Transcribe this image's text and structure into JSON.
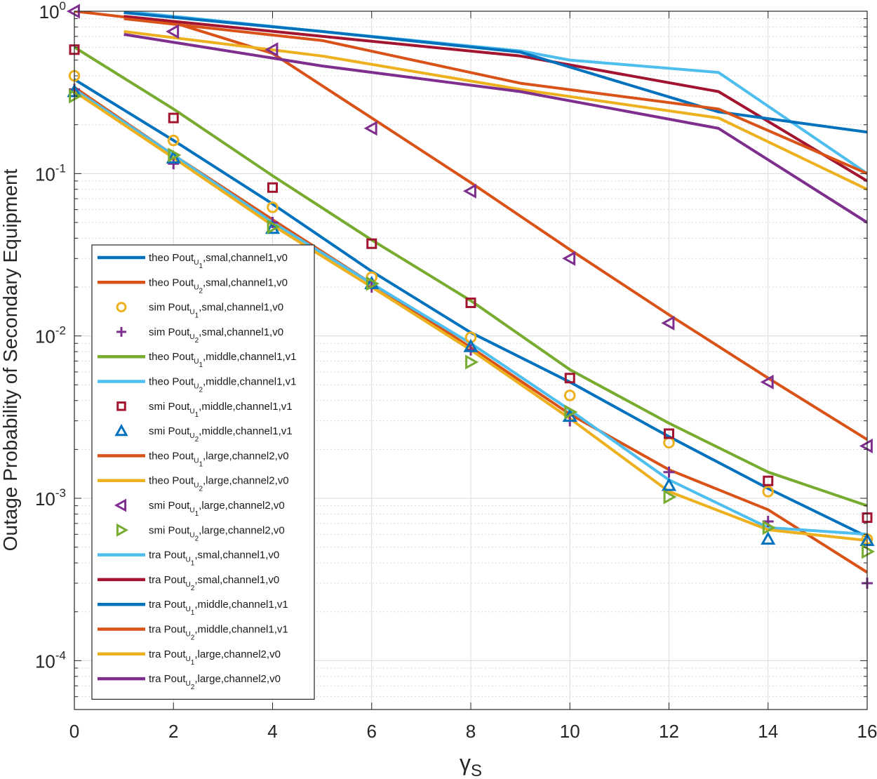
{
  "chart_data": {
    "type": "line",
    "title": "",
    "xlabel": "γ",
    "xlabel_sub": "S",
    "ylabel": "Outage Probability of Secondary Equipment",
    "yscale": "log",
    "xlim": [
      0,
      16
    ],
    "ylim": [
      5e-05,
      1
    ],
    "grid": true,
    "xticks": [
      0,
      2,
      4,
      6,
      8,
      10,
      12,
      14,
      16
    ],
    "yticks": [
      {
        "value": 1,
        "base": "10",
        "exp": "0"
      },
      {
        "value": 0.1,
        "base": "10",
        "exp": "-1"
      },
      {
        "value": 0.01,
        "base": "10",
        "exp": "-2"
      },
      {
        "value": 0.001,
        "base": "10",
        "exp": "-3"
      },
      {
        "value": 0.0001,
        "base": "10",
        "exp": "-4"
      }
    ],
    "legend_position": "lower-left",
    "series": [
      {
        "pre": "theo Pout",
        "sub1": "U",
        "sub2": "1",
        "post": ",smal,channel1,v0",
        "color": "#0072BD",
        "style": "line",
        "x": [
          0,
          2,
          4,
          6,
          8,
          10,
          12,
          14,
          16
        ],
        "y": [
          0.38,
          0.16,
          0.065,
          0.025,
          0.0105,
          0.0052,
          0.0024,
          0.00115,
          0.00058
        ]
      },
      {
        "pre": "theo Pout",
        "sub1": "U",
        "sub2": "2",
        "post": ",smal,channel1,v0",
        "color": "#D95319",
        "style": "line",
        "x": [
          0,
          2,
          4,
          6,
          8,
          10,
          12,
          14,
          16
        ],
        "y": [
          0.34,
          0.13,
          0.052,
          0.021,
          0.0085,
          0.0033,
          0.0015,
          0.00085,
          0.00035
        ]
      },
      {
        "pre": "sim Pout",
        "sub1": "U",
        "sub2": "1",
        "post": ",smal,channel1,v0",
        "color": "#EDB120",
        "style": "marker",
        "marker": "circle",
        "x": [
          0,
          2,
          4,
          6,
          8,
          10,
          12,
          14,
          16
        ],
        "y": [
          0.4,
          0.16,
          0.062,
          0.023,
          0.0098,
          0.0043,
          0.0022,
          0.0011,
          0.00056
        ]
      },
      {
        "pre": "sim Pout",
        "sub1": "U",
        "sub2": "2",
        "post": ",smal,channel1,v0",
        "color": "#7E2F8E",
        "style": "marker",
        "marker": "plus",
        "x": [
          0,
          2,
          4,
          6,
          8,
          10,
          12,
          14,
          16
        ],
        "y": [
          0.33,
          0.115,
          0.05,
          0.02,
          0.0082,
          0.003,
          0.00145,
          0.00072,
          0.0003
        ]
      },
      {
        "pre": "theo Pout",
        "sub1": "U",
        "sub2": "1",
        "post": ",middle,channel1,v1",
        "color": "#77AC30",
        "style": "line",
        "x": [
          0,
          2,
          4,
          6,
          8,
          10,
          12,
          14,
          16
        ],
        "y": [
          0.6,
          0.25,
          0.097,
          0.039,
          0.0165,
          0.0062,
          0.0029,
          0.00145,
          0.0009
        ]
      },
      {
        "pre": "theo Pout",
        "sub1": "U",
        "sub2": "2",
        "post": ",middle,channel1,v1",
        "color": "#4DBEEE",
        "style": "line",
        "x": [
          0,
          2,
          4,
          6,
          8,
          10,
          12,
          14,
          16
        ],
        "y": [
          0.33,
          0.13,
          0.05,
          0.021,
          0.009,
          0.0035,
          0.0013,
          0.00066,
          0.0006
        ]
      },
      {
        "pre": "smi Pout",
        "sub1": "U",
        "sub2": "1",
        "post": ",middle,channel1,v1",
        "color": "#A2142F",
        "style": "marker",
        "marker": "square",
        "x": [
          0,
          2,
          4,
          6,
          8,
          10,
          12,
          14,
          16
        ],
        "y": [
          0.58,
          0.22,
          0.082,
          0.037,
          0.016,
          0.0055,
          0.0025,
          0.00128,
          0.00076
        ]
      },
      {
        "pre": "smi Pout",
        "sub1": "U",
        "sub2": "2",
        "post": ",middle,channel1,v1",
        "color": "#0072BD",
        "style": "marker",
        "marker": "triangle-up",
        "x": [
          0,
          2,
          4,
          6,
          8,
          10,
          12,
          14,
          16
        ],
        "y": [
          0.32,
          0.125,
          0.046,
          0.021,
          0.0086,
          0.0032,
          0.0012,
          0.00056,
          0.00055
        ]
      },
      {
        "pre": "theo Pout",
        "sub1": "U",
        "sub2": "1",
        "post": ",large,channel2,v0",
        "color": "#D95319",
        "style": "line",
        "x": [
          0,
          2,
          4,
          6,
          8,
          10,
          12,
          14,
          16
        ],
        "y": [
          1.0,
          0.85,
          0.55,
          0.22,
          0.088,
          0.034,
          0.0135,
          0.0055,
          0.0023
        ]
      },
      {
        "pre": "theo Pout",
        "sub1": "U",
        "sub2": "2",
        "post": ",large,channel2,v0",
        "color": "#EDB120",
        "style": "line",
        "x": [
          0,
          2,
          4,
          6,
          8,
          10,
          12,
          14,
          16
        ],
        "y": [
          0.32,
          0.125,
          0.048,
          0.02,
          0.0082,
          0.0031,
          0.0011,
          0.00064,
          0.00055
        ]
      },
      {
        "pre": "smi Pout",
        "sub1": "U",
        "sub2": "1",
        "post": ",large,channel2,v0",
        "color": "#7E2F8E",
        "style": "marker",
        "marker": "triangle-left",
        "x": [
          0,
          2,
          4,
          6,
          8,
          10,
          12,
          14,
          16
        ],
        "y": [
          1.0,
          0.75,
          0.58,
          0.19,
          0.078,
          0.03,
          0.012,
          0.0052,
          0.0021
        ]
      },
      {
        "pre": "smi Pout",
        "sub1": "U",
        "sub2": "2",
        "post": ",large,channel2,v0",
        "color": "#77AC30",
        "style": "marker",
        "marker": "triangle-right",
        "x": [
          0,
          2,
          4,
          6,
          8,
          10,
          12,
          14,
          16
        ],
        "y": [
          0.3,
          0.13,
          0.047,
          0.021,
          0.0069,
          0.0034,
          0.00102,
          0.00066,
          0.00047
        ]
      },
      {
        "pre": "tra Pout",
        "sub1": "U",
        "sub2": "1",
        "post": ",smal,channel1,v0",
        "color": "#4DBEEE",
        "style": "line",
        "x": [
          1,
          5,
          9,
          10,
          13,
          16
        ],
        "y": [
          1.0,
          0.75,
          0.57,
          0.5,
          0.42,
          0.1
        ]
      },
      {
        "pre": "tra Pout",
        "sub1": "U",
        "sub2": "2",
        "post": ",smal,channel1,v0",
        "color": "#A2142F",
        "style": "line",
        "x": [
          1,
          5,
          9,
          13,
          16
        ],
        "y": [
          0.93,
          0.7,
          0.53,
          0.32,
          0.09
        ]
      },
      {
        "pre": "tra Pout",
        "sub1": "U",
        "sub2": "1",
        "post": ",middle,channel1,v1",
        "color": "#0072BD",
        "style": "line",
        "x": [
          1,
          5,
          9,
          13,
          16
        ],
        "y": [
          0.98,
          0.75,
          0.56,
          0.24,
          0.18
        ]
      },
      {
        "pre": "tra Pout",
        "sub1": "U",
        "sub2": "2",
        "post": ",middle,channel1,v1",
        "color": "#D95319",
        "style": "line",
        "x": [
          1,
          5,
          9,
          13,
          16
        ],
        "y": [
          0.9,
          0.66,
          0.36,
          0.25,
          0.1
        ]
      },
      {
        "pre": "tra Pout",
        "sub1": "U",
        "sub2": "1",
        "post": ",large,channel2,v0",
        "color": "#EDB120",
        "style": "line",
        "x": [
          1,
          5,
          9,
          13,
          16
        ],
        "y": [
          0.75,
          0.53,
          0.33,
          0.22,
          0.08
        ]
      },
      {
        "pre": "tra Pout",
        "sub1": "U",
        "sub2": "2",
        "post": ",large,channel2,v0",
        "color": "#7E2F8E",
        "style": "line",
        "x": [
          1,
          5,
          9,
          13,
          16
        ],
        "y": [
          0.72,
          0.46,
          0.32,
          0.19,
          0.05
        ]
      }
    ]
  }
}
